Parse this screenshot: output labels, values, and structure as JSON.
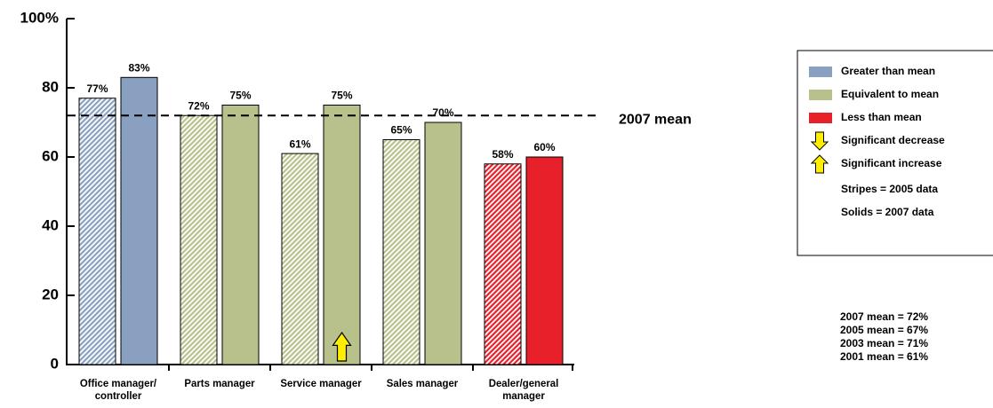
{
  "chart_data": {
    "type": "bar",
    "categories": [
      "Office manager/ controller",
      "Parts manager",
      "Service manager",
      "Sales manager",
      "Dealer/general manager"
    ],
    "series": [
      {
        "name": "Stripes = 2005 data",
        "pattern": "stripes",
        "colors": [
          "#8aa0c0",
          "#b8c08c",
          "#b8c08c",
          "#b8c08c",
          "#e8202a"
        ],
        "values": [
          77,
          72,
          61,
          65,
          58
        ],
        "value_labels": [
          "77%",
          "72%",
          "61%",
          "65%",
          "58%"
        ]
      },
      {
        "name": "Solids = 2007 data",
        "pattern": "solid",
        "colors": [
          "#8aa0c0",
          "#b8c08c",
          "#b8c08c",
          "#b8c08c",
          "#e8202a"
        ],
        "values": [
          83,
          75,
          75,
          70,
          60
        ],
        "value_labels": [
          "83%",
          "75%",
          "75%",
          "70%",
          "60%"
        ],
        "arrows": [
          null,
          null,
          "increase",
          null,
          null
        ]
      }
    ],
    "ylim": [
      0,
      100
    ],
    "yticks": [
      0,
      20,
      40,
      60,
      80,
      {
        "value": 100,
        "label": "100%"
      }
    ],
    "mean": {
      "value": 72,
      "label": "2007 mean"
    },
    "legend": [
      {
        "label": "Greater than mean",
        "color": "#8aa0c0",
        "symbol": "box"
      },
      {
        "label": "Equivalent to mean",
        "color": "#b8c08c",
        "symbol": "box"
      },
      {
        "label": "Less than mean",
        "color": "#e8202a",
        "symbol": "box"
      },
      {
        "label": "Significant decrease",
        "color": "#ffee00",
        "symbol": "down"
      },
      {
        "label": "Significant increase",
        "color": "#ffee00",
        "symbol": "up"
      }
    ],
    "notes": [
      "2007 mean = 72%",
      "2005 mean = 67%",
      "2003 mean = 71%",
      "2001 mean = 61%"
    ]
  }
}
